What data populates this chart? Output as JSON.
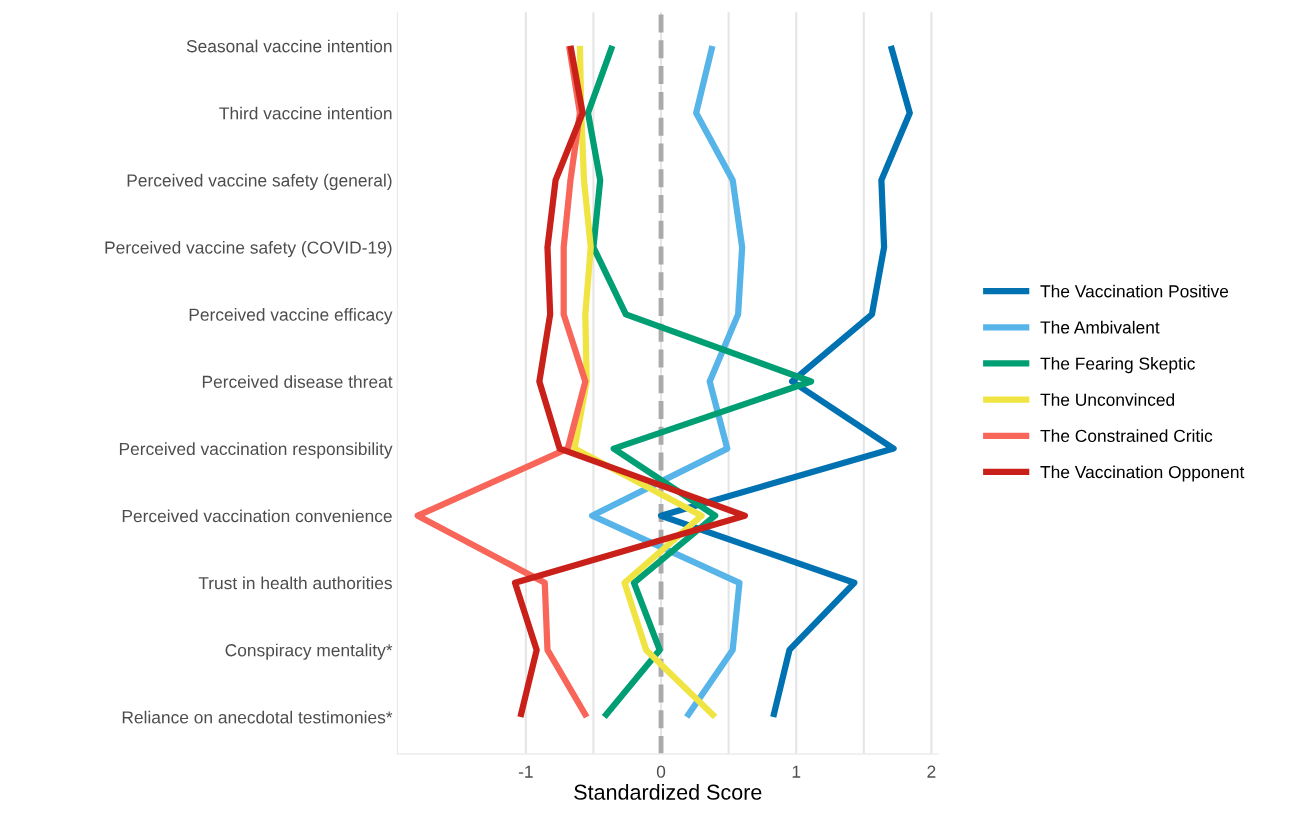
{
  "chart_data": {
    "type": "line",
    "orientation": "horizontal",
    "xlabel": "Standardized Score",
    "categories": [
      "Seasonal vaccine intention",
      "Third vaccine intention",
      "Perceived vaccine safety (general)",
      "Perceived vaccine safety (COVID-19)",
      "Perceived vaccine efficacy",
      "Perceived disease threat",
      "Perceived vaccination responsibility",
      "Perceived vaccination convenience",
      "Trust in health authorities",
      "Conspiracy mentality*",
      "Reliance on anecdotal testimonies*"
    ],
    "xlim": [
      -1.95,
      2.05
    ],
    "xticks": [
      {
        "value": -1,
        "label": "-1"
      },
      0,
      1,
      2
    ],
    "grid": "x",
    "legend": "right",
    "line_style": "solid",
    "marker": "none",
    "ref_lines": [
      {
        "axis": "x",
        "value": 0,
        "label": null,
        "color": "#aaaaaa",
        "line_style": "dashed"
      }
    ],
    "series": [
      {
        "name": "The Vaccination Positive",
        "color": "#0072b2",
        "values": [
          1.7,
          1.84,
          1.63,
          1.65,
          1.56,
          0.97,
          1.72,
          0.0,
          1.43,
          0.95,
          0.83
        ]
      },
      {
        "name": "The Ambivalent",
        "color": "#56b4e9",
        "values": [
          0.38,
          0.26,
          0.53,
          0.6,
          0.57,
          0.36,
          0.49,
          -0.51,
          0.58,
          0.53,
          0.19
        ]
      },
      {
        "name": "The Fearing Skeptic",
        "color": "#009e73",
        "values": [
          -0.36,
          -0.54,
          -0.45,
          -0.5,
          -0.26,
          1.11,
          -0.35,
          0.4,
          -0.2,
          -0.01,
          -0.42
        ]
      },
      {
        "name": "The Unconvinced",
        "color": "#f0e442",
        "values": [
          -0.6,
          -0.59,
          -0.57,
          -0.52,
          -0.56,
          -0.55,
          -0.64,
          0.3,
          -0.27,
          -0.11,
          0.4
        ]
      },
      {
        "name": "The Constrained Critic",
        "color": "#f8665a",
        "values": [
          -0.68,
          -0.6,
          -0.67,
          -0.72,
          -0.72,
          -0.56,
          -0.69,
          -1.8,
          -0.86,
          -0.84,
          -0.55
        ]
      },
      {
        "name": "The Vaccination Opponent",
        "color": "#c9211a",
        "values": [
          -0.67,
          -0.58,
          -0.78,
          -0.84,
          -0.82,
          -0.9,
          -0.75,
          0.62,
          -1.08,
          -0.92,
          -1.04
        ]
      }
    ]
  }
}
